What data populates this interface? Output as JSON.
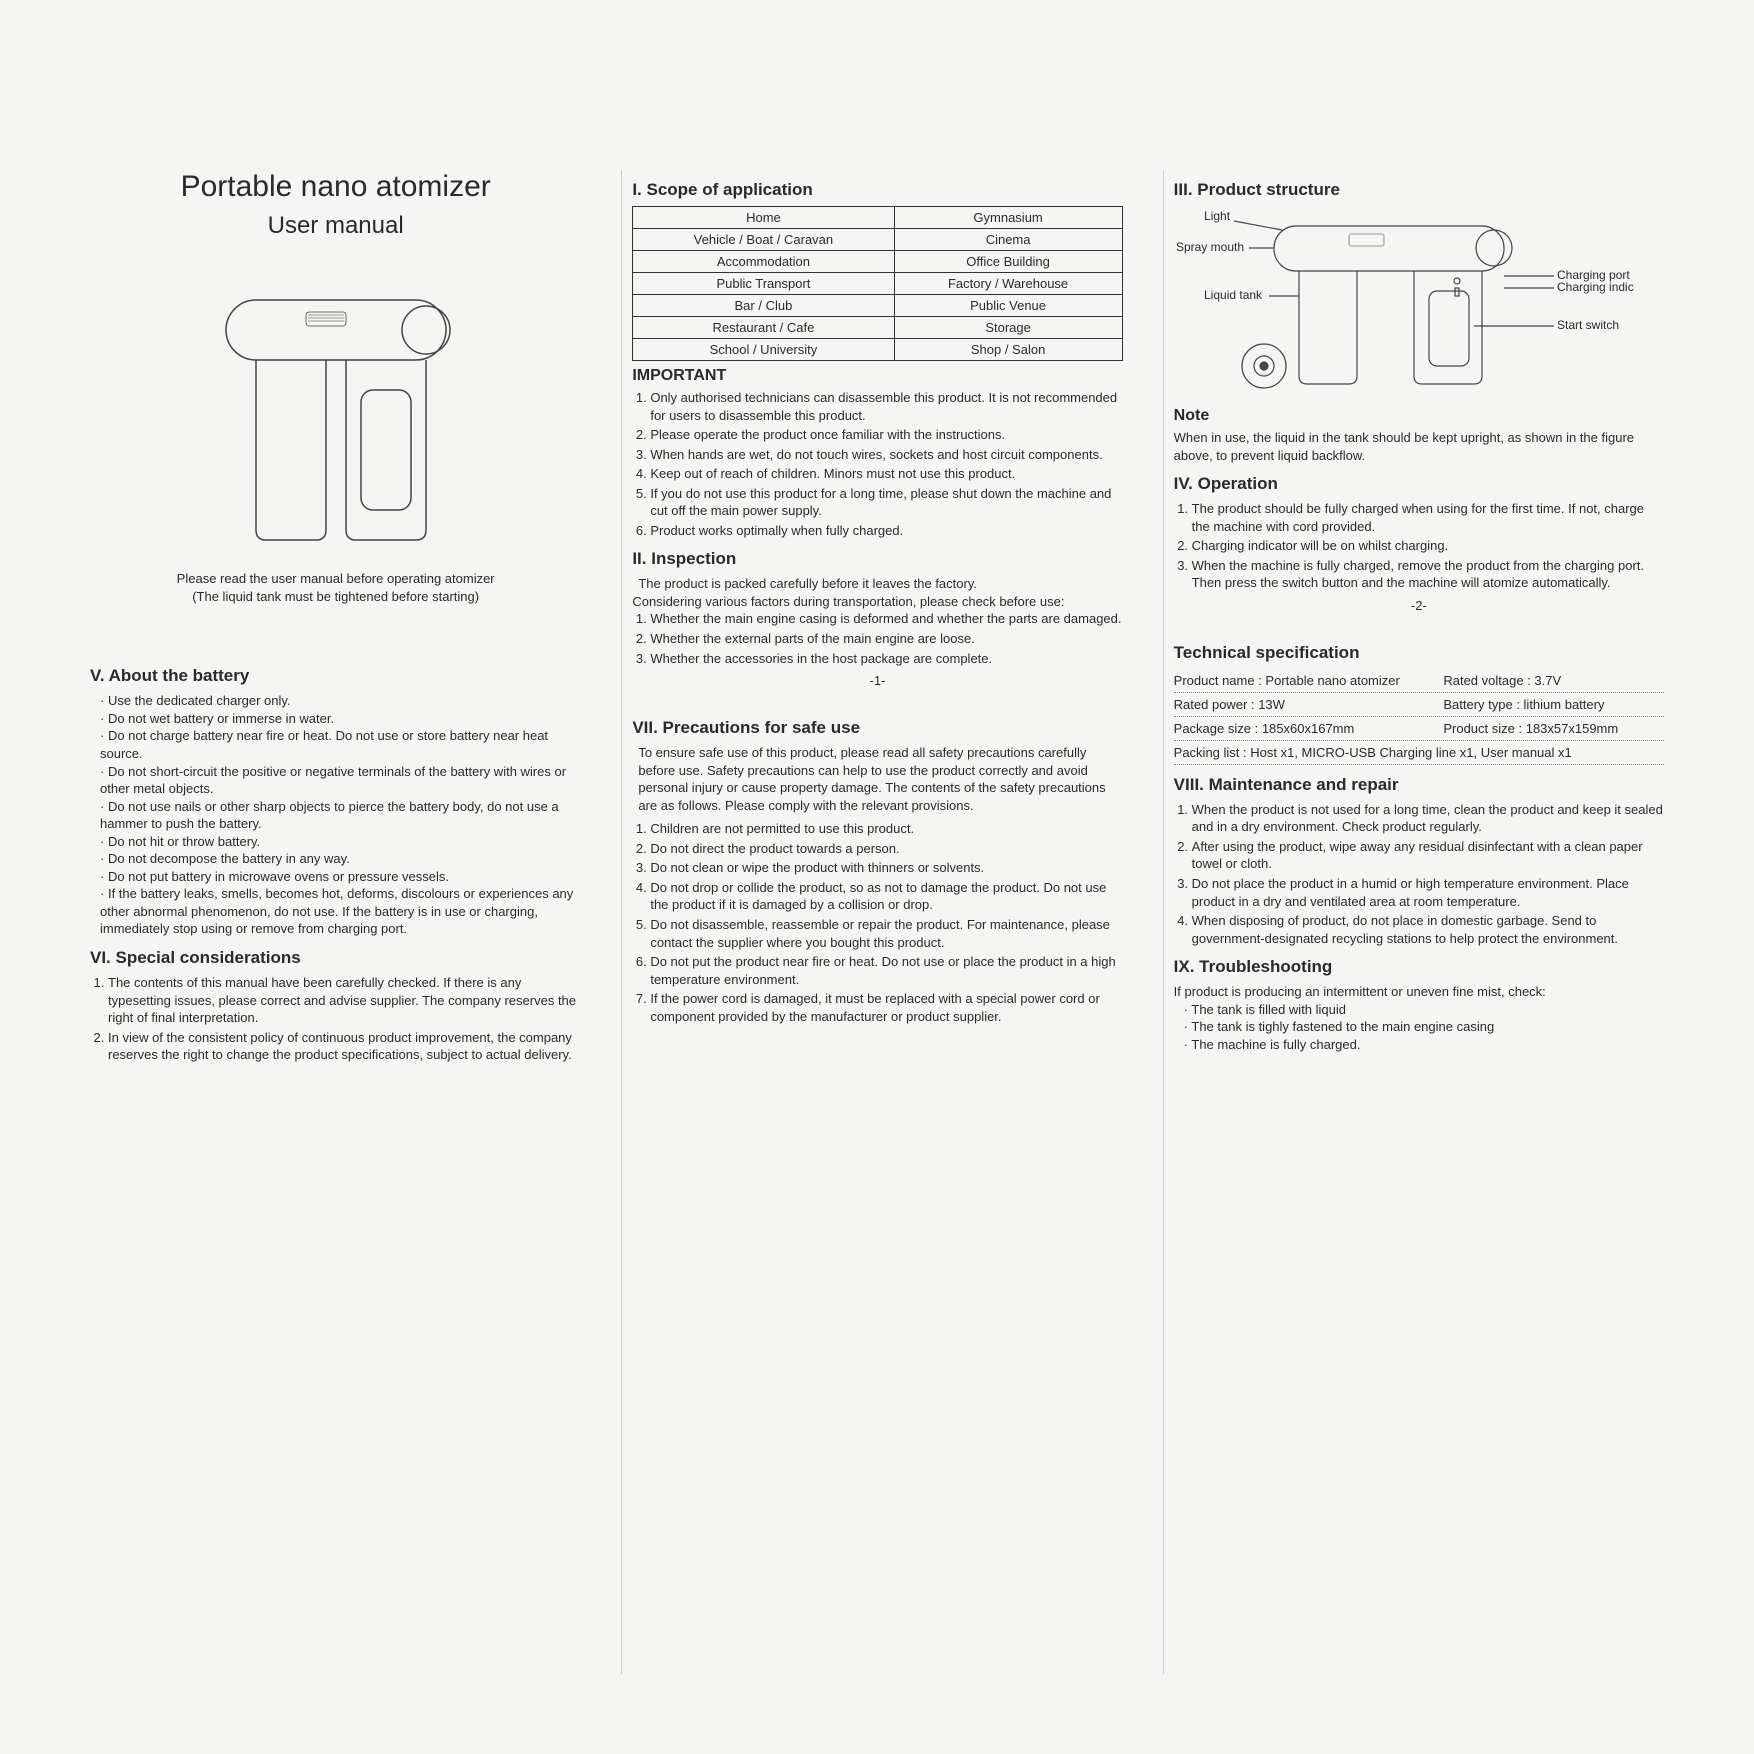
{
  "title": "Portable nano atomizer",
  "subtitle": "User manual",
  "intro_note_1": "Please read the user manual before operating atomizer",
  "intro_note_2": "(The liquid tank must be tightened before starting)",
  "scope": {
    "heading": "I. Scope of application",
    "rows": [
      [
        "Home",
        "Gymnasium"
      ],
      [
        "Vehicle / Boat / Caravan",
        "Cinema"
      ],
      [
        "Accommodation",
        "Office Building"
      ],
      [
        "Public Transport",
        "Factory / Warehouse"
      ],
      [
        "Bar / Club",
        "Public Venue"
      ],
      [
        "Restaurant / Cafe",
        "Storage"
      ],
      [
        "School / University",
        "Shop / Salon"
      ]
    ]
  },
  "important": {
    "heading": "IMPORTANT",
    "items": [
      "Only authorised technicians can disassemble this product. It is not recommended for users to disassemble this product.",
      "Please operate the product once familiar with the instructions.",
      "When hands are wet, do not touch wires, sockets and host circuit components.",
      "Keep out of reach of children. Minors must not use this product.",
      "If you do not use this product for a long time, please shut down the machine and cut off the main power supply.",
      "Product works optimally when fully charged."
    ]
  },
  "inspection": {
    "heading": "II. Inspection",
    "intro1": "The product is packed carefully before it leaves the factory.",
    "intro2": "Considering various factors during transportation, please check before use:",
    "items": [
      "Whether the main engine casing is deformed and whether the parts are damaged.",
      "Whether the external parts of the main engine are loose.",
      "Whether the accessories in the host package are complete."
    ]
  },
  "page1": "-1-",
  "structure": {
    "heading": "III. Product structure",
    "labels": {
      "light": "Light",
      "spray_mouth": "Spray mouth",
      "liquid_tank": "Liquid tank",
      "charging_port": "Charging port",
      "charging_indicator": "Charging indicator",
      "start_switch": "Start switch"
    }
  },
  "struct_note_head": "Note",
  "struct_note": "When in use, the liquid in the tank should be kept upright, as shown in the figure above, to prevent liquid backflow.",
  "operation": {
    "heading": "IV. Operation",
    "items": [
      "The product should be fully charged when using for the first time. If not, charge the machine with cord provided.",
      "Charging indicator will be on whilst charging.",
      "When the machine is fully charged, remove the product from the charging port. Then press the switch button and the machine will atomize automatically."
    ]
  },
  "page2": "-2-",
  "battery": {
    "heading": "V. About the battery",
    "items": [
      "Use the dedicated charger only.",
      "Do not wet battery or immerse in water.",
      "Do not charge battery near fire or heat. Do not use or store battery near heat source.",
      "Do not short-circuit the positive or negative terminals of the battery with wires or other metal objects.",
      "Do not use nails or other sharp objects to pierce the battery body, do not use a hammer to push the battery.",
      "Do not hit or throw battery.",
      "Do not decompose the battery in any way.",
      "Do not put battery in microwave ovens or pressure vessels.",
      "If the battery leaks, smells, becomes hot, deforms, discolours or experiences any other abnormal phenomenon, do not use. If the battery is in use or charging, immediately stop using or remove from charging port."
    ]
  },
  "special": {
    "heading": "VI. Special considerations",
    "items": [
      "The contents of this manual have been carefully checked. If there is any typesetting issues, please correct and advise supplier. The company reserves the right of final interpretation.",
      "In view of the consistent policy of continuous product improvement, the company reserves the right to change the product specifications, subject to actual delivery."
    ]
  },
  "precautions": {
    "heading": "VII. Precautions for safe use",
    "intro": "To ensure safe use of this product, please read all safety precautions carefully before use. Safety precautions can help to use the product correctly and avoid personal injury or cause property damage. The contents of the safety precautions are as follows. Please comply with the relevant provisions.",
    "items": [
      "Children are not permitted to use this product.",
      "Do not direct the product towards a person.",
      "Do not clean or wipe the product with thinners or solvents.",
      "Do not drop or collide the product, so as not to damage the product. Do not use the product if it is damaged by a collision or drop.",
      "Do not disassemble, reassemble or repair the product. For maintenance, please contact the supplier where you bought this product.",
      "Do not put the product near fire or heat. Do not use or place the product in a high temperature environment.",
      "If the power cord is damaged, it must be replaced with a special power cord or component provided by the manufacturer or product supplier."
    ]
  },
  "techspec": {
    "heading": "Technical specification",
    "rows": [
      [
        "Product name : Portable nano atomizer",
        "Rated voltage : 3.7V"
      ],
      [
        "Rated power : 13W",
        "Battery type : lithium battery"
      ],
      [
        "Package size : 185x60x167mm",
        "Product size : 183x57x159mm"
      ]
    ],
    "packing": "Packing list : Host x1, MICRO-USB Charging line x1, User manual x1"
  },
  "maintenance": {
    "heading": "VIII. Maintenance and repair",
    "items": [
      "When the product is not used for a long time, clean the product and keep it sealed and in a dry environment. Check product regularly.",
      "After using the product, wipe away any residual disinfectant with a clean paper towel or cloth.",
      "Do not place the product in a humid or high temperature environment. Place product in a dry and ventilated area at room temperature.",
      "When disposing of product, do not place in domestic garbage. Send to government-designated recycling stations to help protect the environment."
    ]
  },
  "troubleshoot": {
    "heading": "IX. Troubleshooting",
    "intro": "If product is producing an intermittent or uneven fine mist, check:",
    "items": [
      "The tank is filled with liquid",
      "The tank is tighly fastened to the main engine casing",
      "The machine is fully charged."
    ]
  },
  "colors": {
    "text": "#2a2a2a",
    "bg": "#f5f5f3",
    "border": "#333333"
  }
}
